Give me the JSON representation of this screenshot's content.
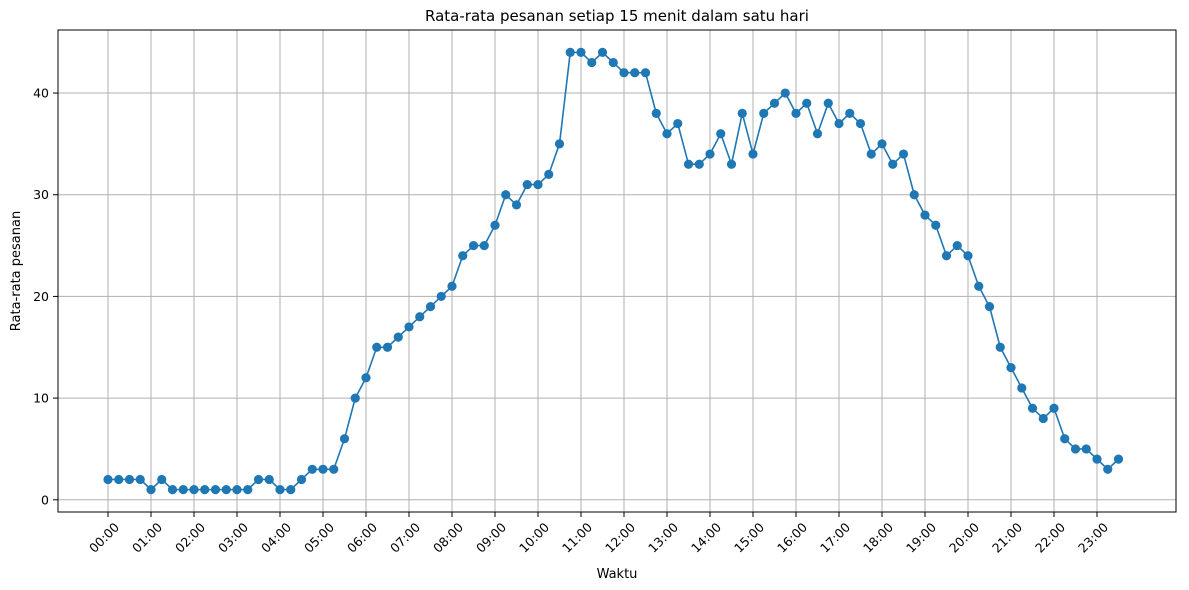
{
  "chart_data": {
    "type": "line",
    "title": "Rata-rata pesanan setiap 15 menit dalam satu hari",
    "xlabel": "Waktu",
    "ylabel": "Rata-rata pesanan",
    "x_tick_labels": [
      "00:00",
      "01:00",
      "02:00",
      "03:00",
      "04:00",
      "05:00",
      "06:00",
      "07:00",
      "08:00",
      "09:00",
      "10:00",
      "11:00",
      "12:00",
      "13:00",
      "14:00",
      "15:00",
      "16:00",
      "17:00",
      "18:00",
      "19:00",
      "20:00",
      "21:00",
      "22:00",
      "23:00"
    ],
    "y_ticks": [
      0,
      10,
      20,
      30,
      40
    ],
    "ylim": [
      -1.2,
      46.2
    ],
    "grid": true,
    "marker": "circle",
    "series": [
      {
        "color": "#1f77b4",
        "values": [
          2,
          2,
          2,
          2,
          1,
          2,
          1,
          1,
          1,
          1,
          1,
          1,
          1,
          1,
          2,
          2,
          1,
          1,
          2,
          3,
          3,
          3,
          6,
          10,
          12,
          15,
          15,
          16,
          17,
          18,
          19,
          20,
          21,
          24,
          25,
          25,
          27,
          30,
          29,
          31,
          31,
          32,
          35,
          44,
          44,
          43,
          44,
          43,
          42,
          42,
          42,
          38,
          36,
          37,
          33,
          33,
          34,
          36,
          33,
          38,
          34,
          38,
          39,
          40,
          38,
          39,
          36,
          39,
          37,
          38,
          37,
          34,
          35,
          33,
          34,
          30,
          28,
          27,
          24,
          25,
          24,
          21,
          19,
          15,
          13,
          11,
          9,
          8,
          9,
          6,
          5,
          5,
          4,
          3,
          4
        ]
      }
    ]
  }
}
